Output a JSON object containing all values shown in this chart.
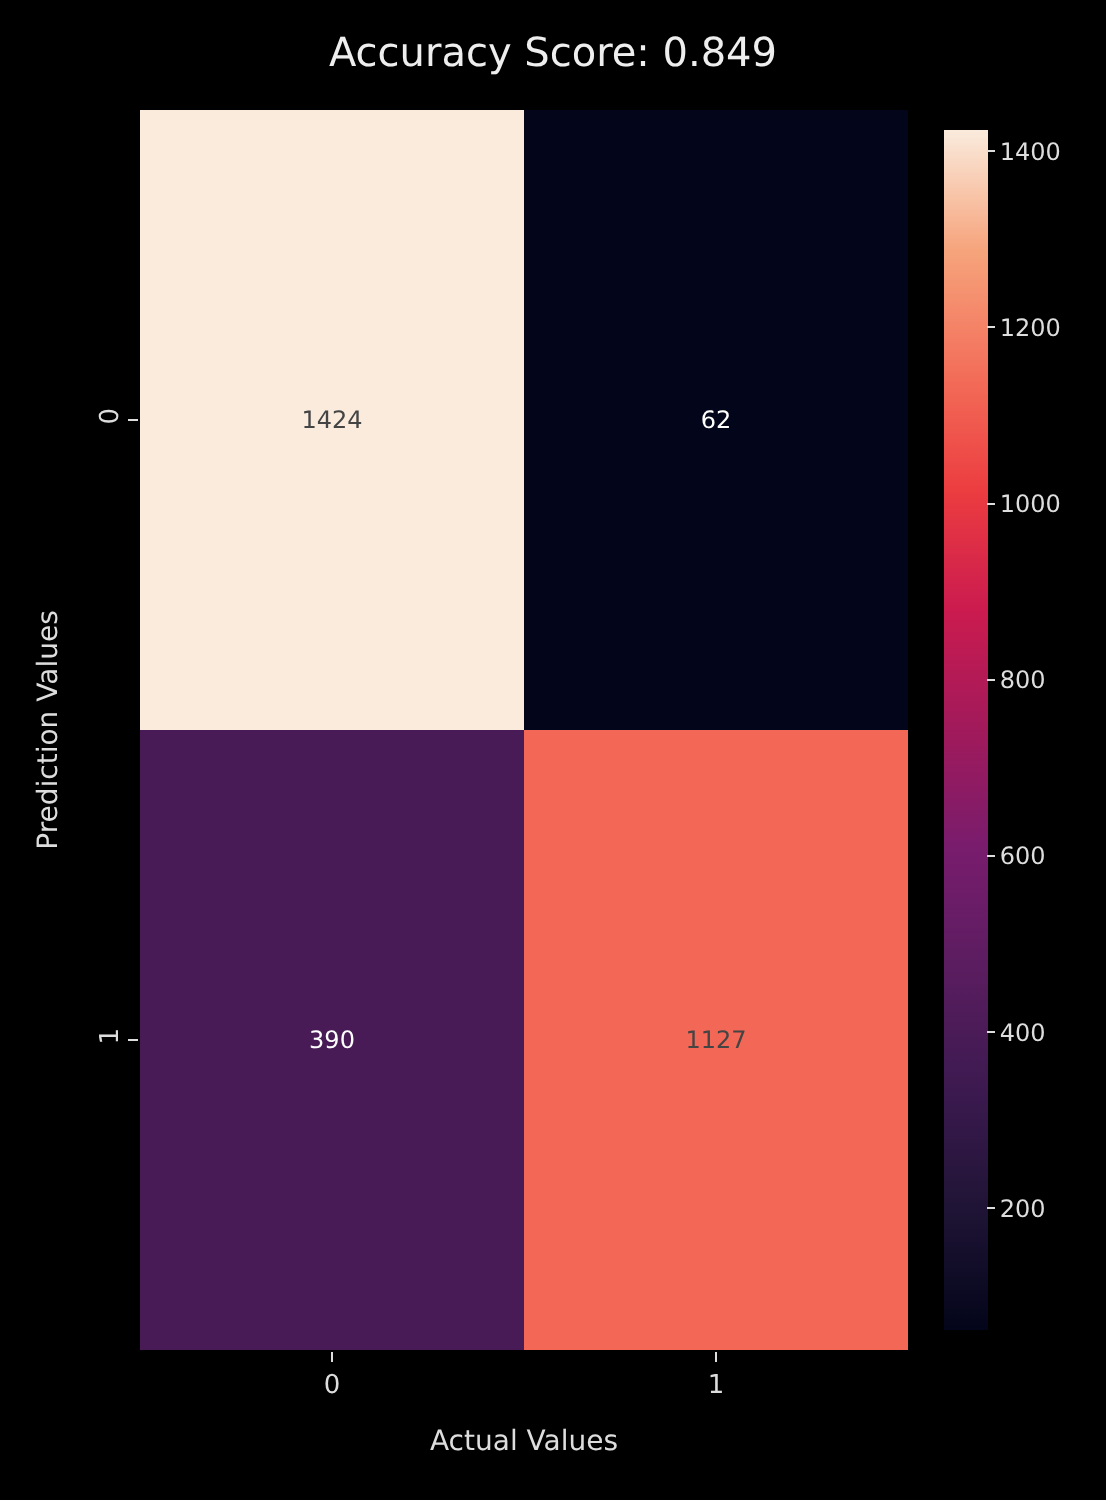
{
  "chart_data": {
    "type": "heatmap",
    "title": "Accuracy Score: 0.849",
    "xlabel": "Actual Values",
    "ylabel": "Prediction Values",
    "categories": [
      "0",
      "1"
    ],
    "y_categories": [
      "0",
      "1"
    ],
    "cells": [
      [
        1424,
        62
      ],
      [
        390,
        1127
      ]
    ],
    "data_labels": true,
    "clim": [
      62,
      1424
    ],
    "cticks": [
      200,
      400,
      600,
      800,
      1000,
      1200,
      1400
    ]
  }
}
